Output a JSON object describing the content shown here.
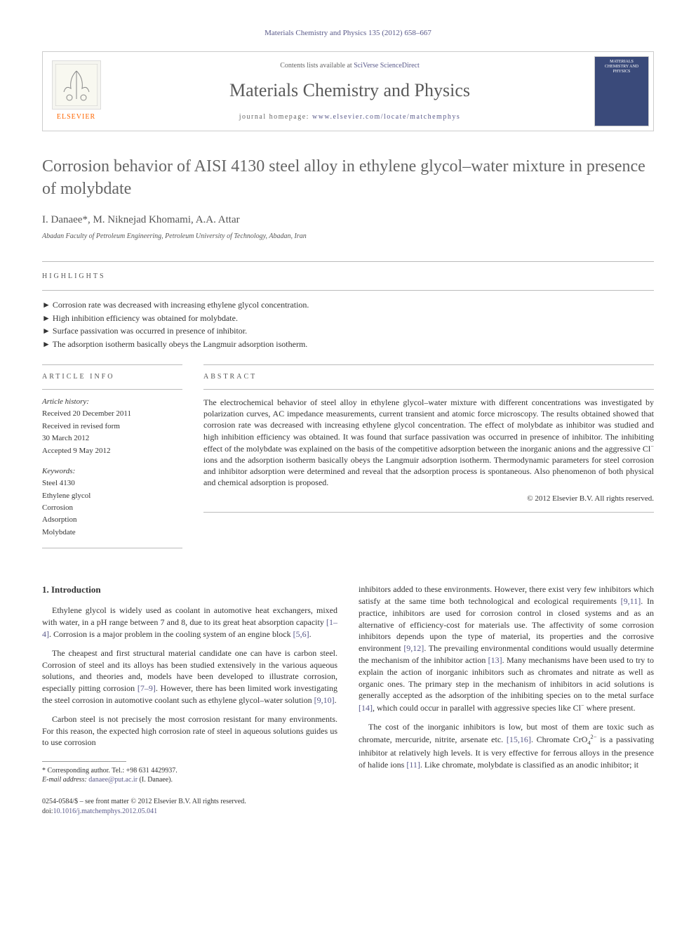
{
  "journal_ref": "Materials Chemistry and Physics 135 (2012) 658–667",
  "header": {
    "publisher": "ELSEVIER",
    "contents_prefix": "Contents lists available at ",
    "contents_link": "SciVerse ScienceDirect",
    "journal_title": "Materials Chemistry and Physics",
    "homepage_prefix": "journal homepage: ",
    "homepage_link": "www.elsevier.com/locate/matchemphys",
    "cover_text": "MATERIALS CHEMISTRY AND PHYSICS"
  },
  "article": {
    "title": "Corrosion behavior of AISI 4130 steel alloy in ethylene glycol–water mixture in presence of molybdate",
    "authors": "I. Danaee*, M. Niknejad Khomami, A.A. Attar",
    "affiliation": "Abadan Faculty of Petroleum Engineering, Petroleum University of Technology, Abadan, Iran"
  },
  "sections": {
    "highlights_label": "HIGHLIGHTS",
    "article_info_label": "ARTICLE INFO",
    "abstract_label": "ABSTRACT",
    "intro_heading": "1. Introduction"
  },
  "highlights": [
    "Corrosion rate was decreased with increasing ethylene glycol concentration.",
    "High inhibition efficiency was obtained for molybdate.",
    "Surface passivation was occurred in presence of inhibitor.",
    "The adsorption isotherm basically obeys the Langmuir adsorption isotherm."
  ],
  "article_info": {
    "history_heading": "Article history:",
    "received": "Received 20 December 2011",
    "revised1": "Received in revised form",
    "revised2": "30 March 2012",
    "accepted": "Accepted 9 May 2012",
    "keywords_heading": "Keywords:",
    "keywords": [
      "Steel 4130",
      "Ethylene glycol",
      "Corrosion",
      "Adsorption",
      "Molybdate"
    ]
  },
  "abstract": {
    "text": "The electrochemical behavior of steel alloy in ethylene glycol–water mixture with different concentrations was investigated by polarization curves, AC impedance measurements, current transient and atomic force microscopy. The results obtained showed that corrosion rate was decreased with increasing ethylene glycol concentration. The effect of molybdate as inhibitor was studied and high inhibition efficiency was obtained. It was found that surface passivation was occurred in presence of inhibitor. The inhibiting effect of the molybdate was explained on the basis of the competitive adsorption between the inorganic anions and the aggressive Cl⁻ ions and the adsorption isotherm basically obeys the Langmuir adsorption isotherm. Thermodynamic parameters for steel corrosion and inhibitor adsorption were determined and reveal that the adsorption process is spontaneous. Also phenomenon of both physical and chemical adsorption is proposed.",
    "copyright": "© 2012 Elsevier B.V. All rights reserved."
  },
  "body": {
    "col1_p1": "Ethylene glycol is widely used as coolant in automotive heat exchangers, mixed with water, in a pH range between 7 and 8, due to its great heat absorption capacity [1–4]. Corrosion is a major problem in the cooling system of an engine block [5,6].",
    "col1_p2": "The cheapest and first structural material candidate one can have is carbon steel. Corrosion of steel and its alloys has been studied extensively in the various aqueous solutions, and theories and, models have been developed to illustrate corrosion, especially pitting corrosion [7–9]. However, there has been limited work investigating the steel corrosion in automotive coolant such as ethylene glycol–water solution [9,10].",
    "col1_p3": "Carbon steel is not precisely the most corrosion resistant for many environments. For this reason, the expected high corrosion rate of steel in aqueous solutions guides us to use corrosion",
    "col2_p1": "inhibitors added to these environments. However, there exist very few inhibitors which satisfy at the same time both technological and ecological requirements [9,11]. In practice, inhibitors are used for corrosion control in closed systems and as an alternative of efficiency-cost for materials use. The affectivity of some corrosion inhibitors depends upon the type of material, its properties and the corrosive environment [9,12]. The prevailing environmental conditions would usually determine the mechanism of the inhibitor action [13]. Many mechanisms have been used to try to explain the action of inorganic inhibitors such as chromates and nitrate as well as organic ones. The primary step in the mechanism of inhibitors in acid solutions is generally accepted as the adsorption of the inhibiting species on to the metal surface [14], which could occur in parallel with aggressive species like Cl⁻ where present.",
    "col2_p2": "The cost of the inorganic inhibitors is low, but most of them are toxic such as chromate, mercuride, nitrite, arsenate etc. [15,16]. Chromate CrO₄²⁻ is a passivating inhibitor at relatively high levels. It is very effective for ferrous alloys in the presence of halide ions [11]. Like chromate, molybdate is classified as an anodic inhibitor; it"
  },
  "footnote": {
    "corresponding": "* Corresponding author. Tel.: +98 631 4429937.",
    "email_label": "E-mail address: ",
    "email": "danaee@put.ac.ir",
    "email_suffix": " (I. Danaee)."
  },
  "bottom": {
    "issn": "0254-0584/$ – see front matter © 2012 Elsevier B.V. All rights reserved.",
    "doi_prefix": "doi:",
    "doi": "10.1016/j.matchemphys.2012.05.041"
  },
  "colors": {
    "link": "#5a5a8a",
    "title_gray": "#666666",
    "border": "#cccccc",
    "publisher_orange": "#ff6600",
    "cover_bg": "#3a4a7a"
  }
}
